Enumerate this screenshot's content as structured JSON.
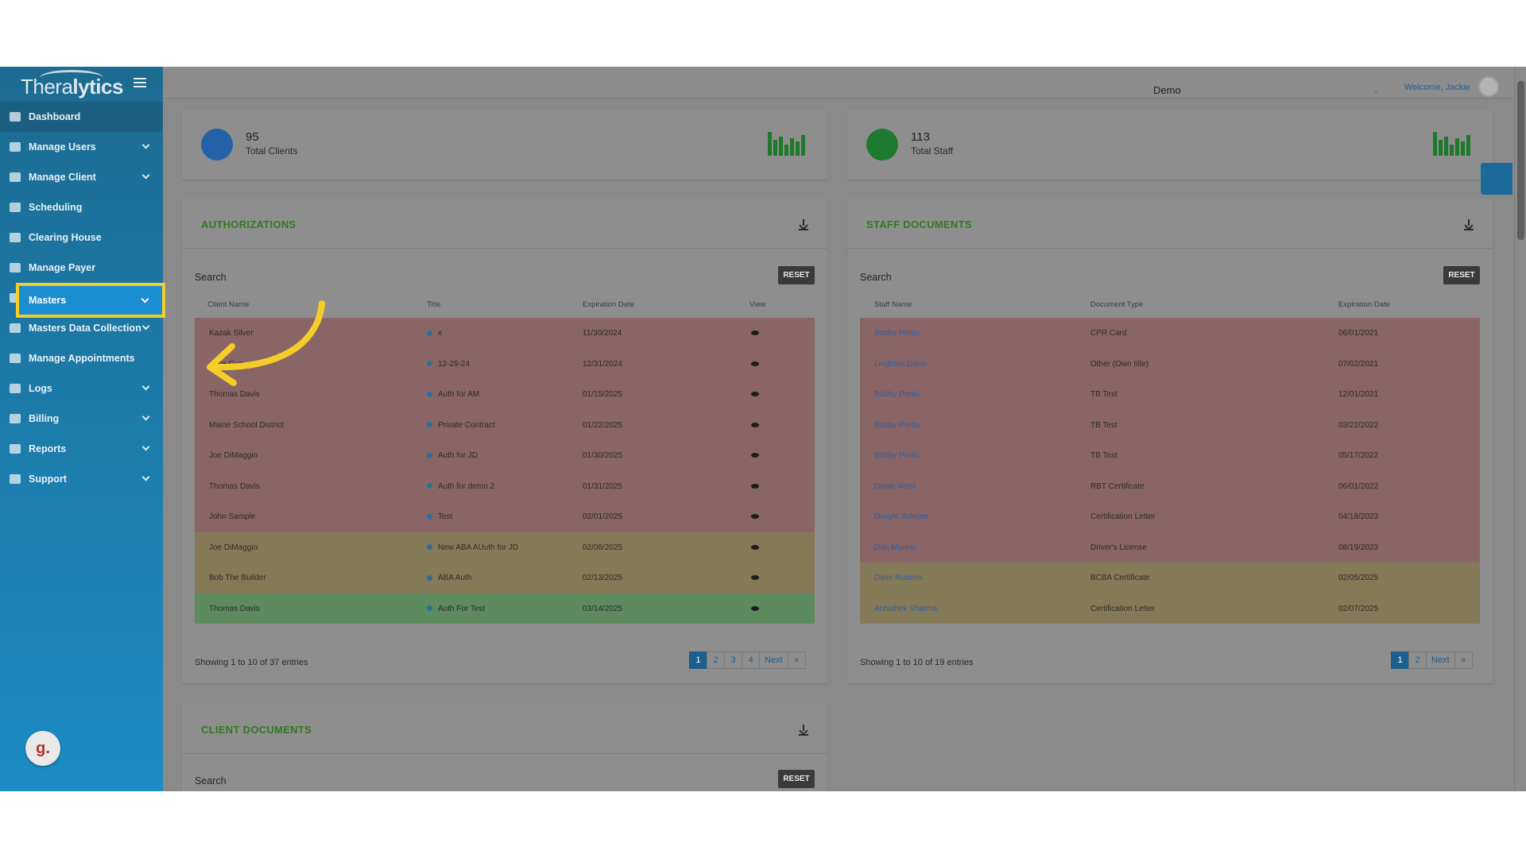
{
  "app": {
    "logo_light": "Thera",
    "logo_bold": "lytics"
  },
  "sidebar": {
    "items": [
      {
        "label": "Dashboard",
        "chevron": false
      },
      {
        "label": "Manage Users",
        "chevron": true
      },
      {
        "label": "Manage Client",
        "chevron": true
      },
      {
        "label": "Scheduling",
        "chevron": false
      },
      {
        "label": "Clearing House",
        "chevron": false
      },
      {
        "label": "Manage Payer",
        "chevron": false
      },
      {
        "label": "Masters",
        "chevron": true
      },
      {
        "label": "Masters Data Collection",
        "chevron": true
      },
      {
        "label": "Manage Appointments",
        "chevron": false
      },
      {
        "label": "Logs",
        "chevron": true
      },
      {
        "label": "Billing",
        "chevron": true
      },
      {
        "label": "Reports",
        "chevron": true
      },
      {
        "label": "Support",
        "chevron": true
      }
    ],
    "highlight_color": "#f5cd2a",
    "bottom_badge": "g."
  },
  "header": {
    "company": "Demo",
    "welcome": "Welcome, Jackie"
  },
  "stats": {
    "clients": {
      "value": "95",
      "label": "Total Clients",
      "color": "#2361a8"
    },
    "staff": {
      "value": "113",
      "label": "Total Staff",
      "color": "#1d7a2e"
    }
  },
  "authorizations": {
    "title": "AUTHORIZATIONS",
    "search_label": "Search",
    "reset_label": "RESET",
    "columns": [
      "Client Name",
      "Title",
      "Expiration Date",
      "View"
    ],
    "rows": [
      {
        "name": "Kazak Silver",
        "title": "x",
        "date": "11/30/2024",
        "status": "red"
      },
      {
        "name": "Alice Guo",
        "title": "12-29-24",
        "date": "12/31/2024",
        "status": "red"
      },
      {
        "name": "Thomas Davis",
        "title": "Auth for AM",
        "date": "01/15/2025",
        "status": "red"
      },
      {
        "name": "Maine School District",
        "title": "Private Contract",
        "date": "01/22/2025",
        "status": "red"
      },
      {
        "name": "Joe DiMaggio",
        "title": "Auth for JD",
        "date": "01/30/2025",
        "status": "red"
      },
      {
        "name": "Thomas Davis",
        "title": "Auth for demo 2",
        "date": "01/31/2025",
        "status": "red"
      },
      {
        "name": "John Sample",
        "title": "Test",
        "date": "02/01/2025",
        "status": "red"
      },
      {
        "name": "Joe DiMaggio",
        "title": "New ABA AUuth for JD",
        "date": "02/08/2025",
        "status": "yellow"
      },
      {
        "name": "Bob The Builder",
        "title": "ABA Auth",
        "date": "02/13/2025",
        "status": "yellow"
      },
      {
        "name": "Thomas Davis",
        "title": "Auth For Test",
        "date": "03/14/2025",
        "status": "green"
      }
    ],
    "showing": "Showing 1 to 10 of 37 entries",
    "pages": [
      "1",
      "2",
      "3",
      "4",
      "Next",
      "»"
    ]
  },
  "staff_documents": {
    "title": "STAFF DOCUMENTS",
    "search_label": "Search",
    "reset_label": "RESET",
    "columns": [
      "Staff Name",
      "Document Type",
      "Expiration Date"
    ],
    "rows": [
      {
        "name": "Bobby Portis",
        "type": "CPR Card",
        "date": "06/01/2021",
        "status": "red"
      },
      {
        "name": "Leighton Davis",
        "type": "Other (Own title)",
        "date": "07/02/2021",
        "status": "red"
      },
      {
        "name": "Bobby Portis",
        "type": "TB Test",
        "date": "12/01/2021",
        "status": "red"
      },
      {
        "name": "Bobby Portis",
        "type": "TB Test",
        "date": "03/22/2022",
        "status": "red"
      },
      {
        "name": "Bobby Portis",
        "type": "TB Test",
        "date": "05/17/2022",
        "status": "red"
      },
      {
        "name": "Dante West",
        "type": "RBT Certificate",
        "date": "06/01/2022",
        "status": "red"
      },
      {
        "name": "Dwight Schrute",
        "type": "Certification Letter",
        "date": "04/18/2023",
        "status": "red"
      },
      {
        "name": "Dan Marino",
        "type": "Driver's License",
        "date": "08/19/2023",
        "status": "red"
      },
      {
        "name": "Dave Roberts",
        "type": "BCBA Certificate",
        "date": "02/05/2025",
        "status": "yellow"
      },
      {
        "name": "Abhishek Sharma",
        "type": "Certification Letter",
        "date": "02/07/2025",
        "status": "yellow"
      }
    ],
    "showing": "Showing 1 to 10 of 19 entries",
    "pages": [
      "1",
      "2",
      "Next",
      "»"
    ]
  },
  "client_documents": {
    "title": "CLIENT DOCUMENTS",
    "search_label": "Search",
    "reset_label": "RESET"
  }
}
